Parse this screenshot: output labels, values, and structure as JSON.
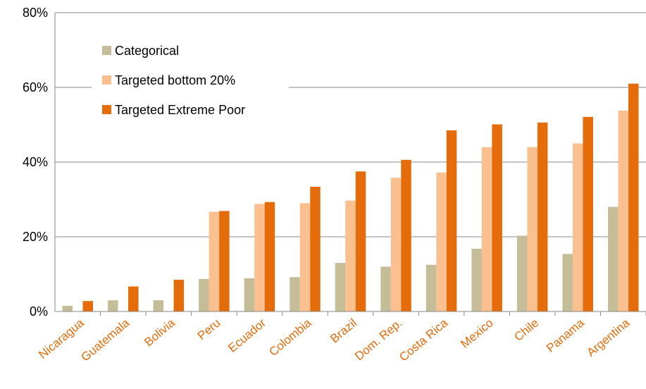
{
  "chart_data": {
    "type": "bar",
    "categories": [
      "Nicaragua",
      "Guatemala",
      "Bolivia",
      "Peru",
      "Ecuador",
      "Colombia",
      "Brazil",
      "Dom. Rep.",
      "Costa Rica",
      "Mexico",
      "Chile",
      "Panama",
      "Argentina"
    ],
    "series": [
      {
        "name": "Categorical",
        "color": "#c4bd97",
        "values": [
          1.5,
          3.0,
          3.0,
          8.7,
          8.9,
          9.2,
          13.0,
          12.0,
          12.5,
          16.8,
          20.3,
          15.4,
          28.0
        ]
      },
      {
        "name": "Targeted bottom 20%",
        "color": "#fac090",
        "values": [
          0,
          0,
          0,
          26.7,
          28.8,
          29.0,
          29.7,
          35.8,
          37.2,
          44.0,
          44.0,
          45.0,
          53.8
        ]
      },
      {
        "name": "Targeted Extreme Poor",
        "color": "#e46c0a",
        "values": [
          2.8,
          6.7,
          8.5,
          26.9,
          29.3,
          33.4,
          37.5,
          40.6,
          48.5,
          50.1,
          50.6,
          52.1,
          61.0
        ]
      }
    ],
    "yticks": [
      "0%",
      "20%",
      "40%",
      "60%",
      "80%"
    ],
    "ylim": [
      0,
      80
    ],
    "category_label_color": "#e46c0a",
    "grid": true,
    "legend_position": "top-left"
  }
}
